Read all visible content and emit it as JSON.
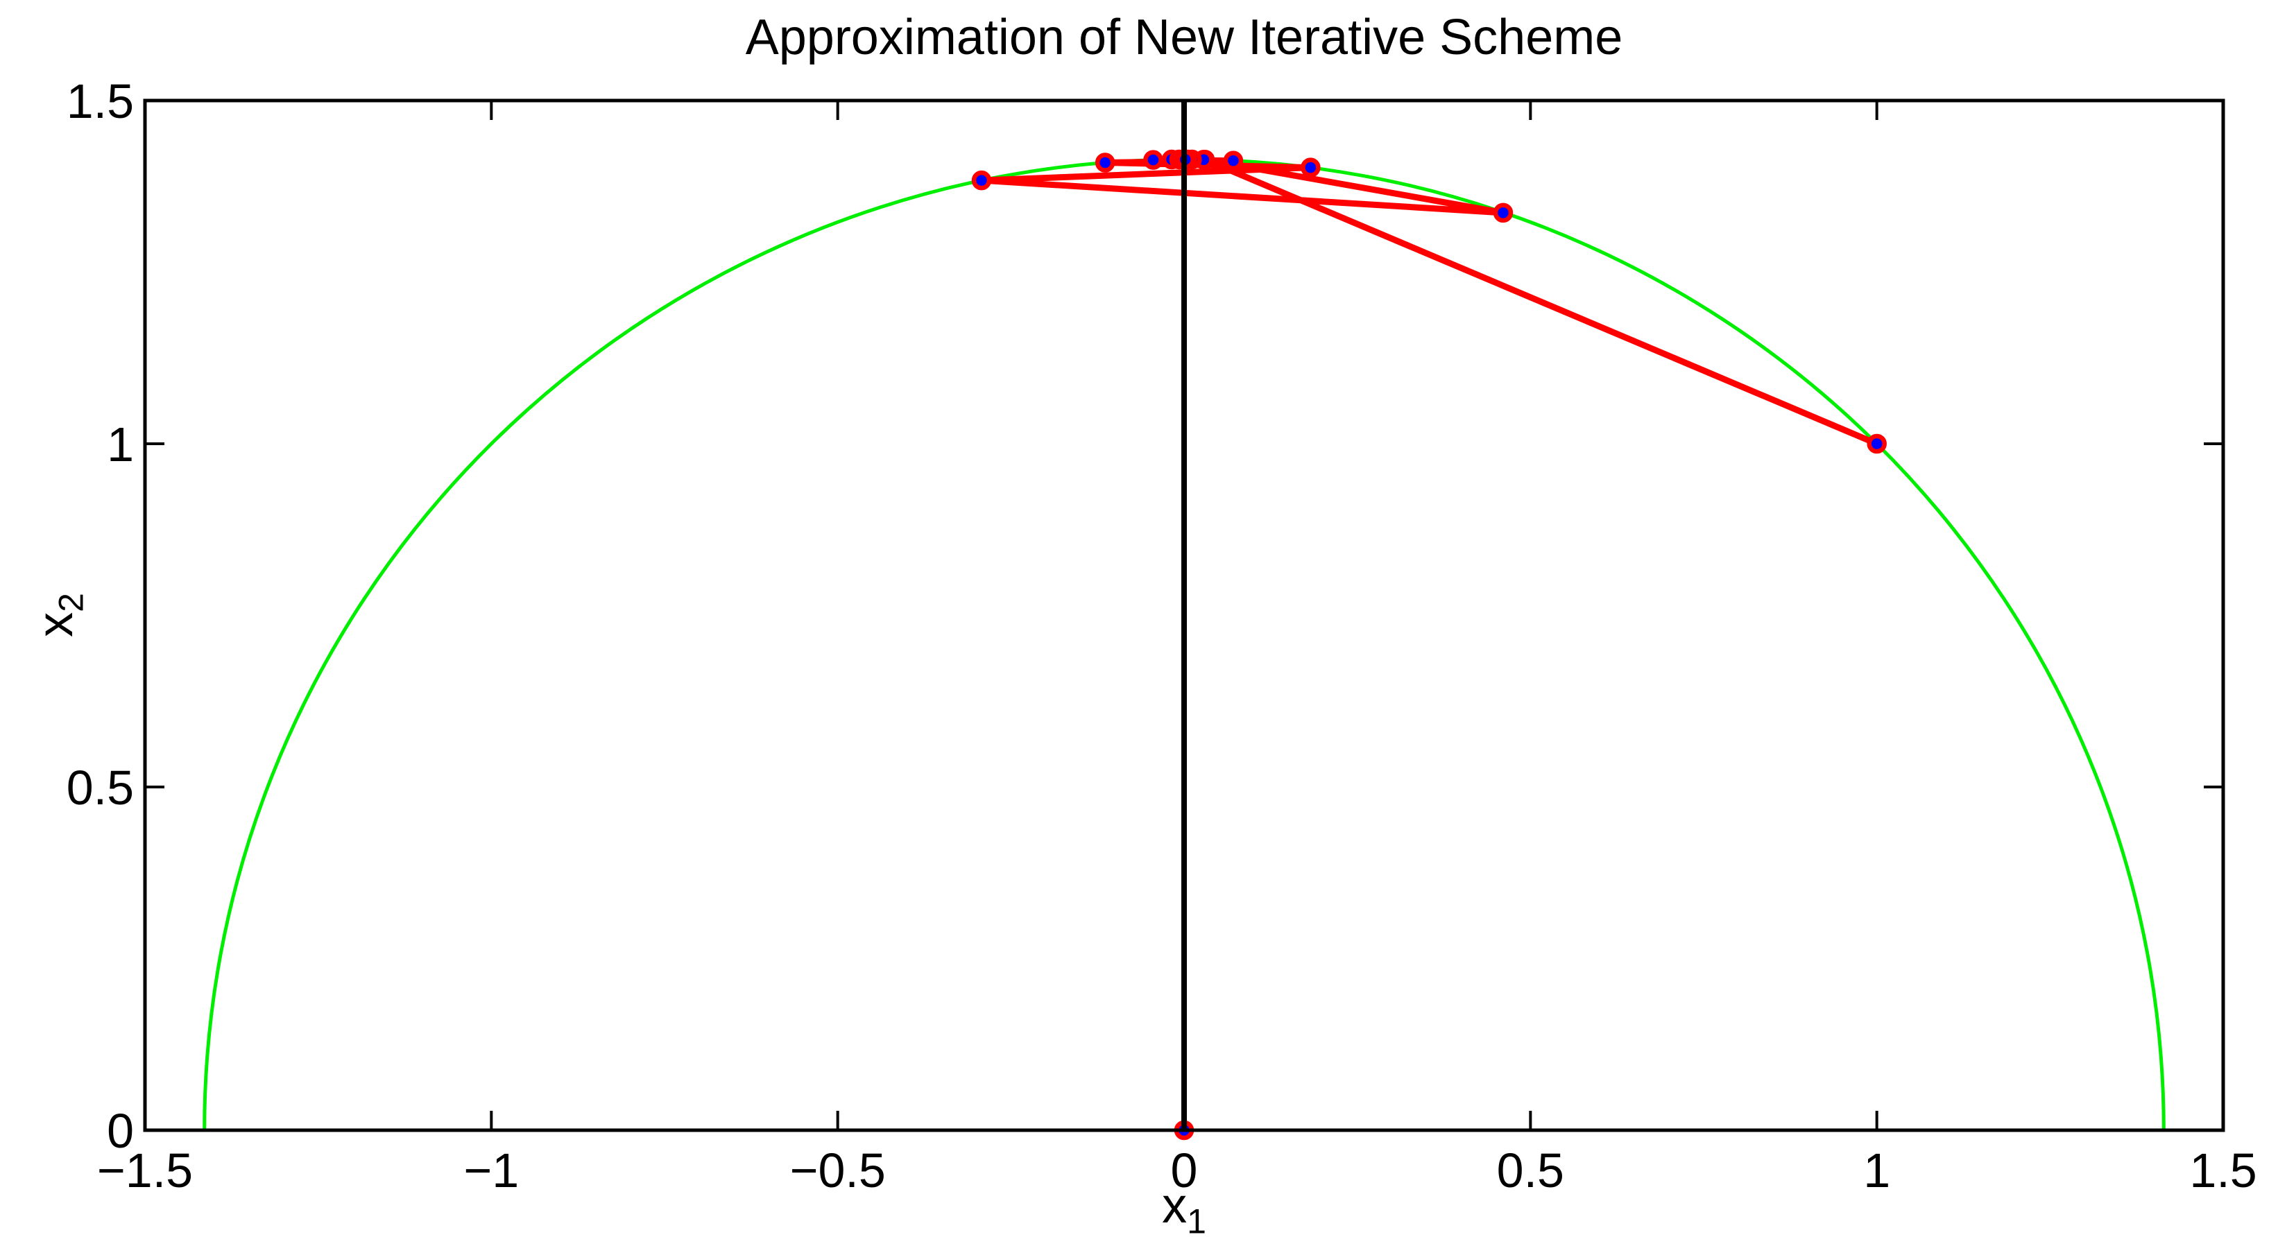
{
  "window": {
    "background": "#ffffff"
  },
  "chart_data": {
    "type": "line",
    "title": "Approximation of New Iterative Scheme",
    "xlabel_base": "x",
    "xlabel_sub": "1",
    "ylabel_base": "x",
    "ylabel_sub": "2",
    "xlim": [
      -1.5,
      1.5
    ],
    "ylim": [
      0,
      1.5
    ],
    "grid": false,
    "legend_position": "none",
    "x_tick_values": [
      -1.5,
      -1,
      -0.5,
      0,
      0.5,
      1,
      1.5
    ],
    "x_tick_labels": [
      "−1.5",
      "−1",
      "−0.5",
      "0",
      "0.5",
      "1",
      "1.5"
    ],
    "y_tick_values": [
      0,
      0.5,
      1,
      1.5
    ],
    "y_tick_labels": [
      "0",
      "0.5",
      "1",
      "1.5"
    ],
    "colors": {
      "circle_curve": "#00ee00",
      "iterate_line": "#ff0000",
      "marker_edge": "#ff0000",
      "marker_face": "#0000ff",
      "axes": "#000000"
    },
    "series": [
      {
        "name": "constraint-circle",
        "type": "curve",
        "description": "upper semicircle x1^2 + x2^2 = 2",
        "radius": 1.414214,
        "x_range": [
          -1.414214,
          1.414214
        ]
      },
      {
        "name": "zero-axis-line",
        "type": "segment",
        "points": [
          [
            0,
            0
          ],
          [
            0,
            1.5
          ]
        ]
      },
      {
        "name": "iterates-path",
        "type": "line-markers",
        "points": [
          [
            1.0,
            1.0
          ],
          [
            0.0301,
            1.4139
          ],
          [
            0.4606,
            1.3365
          ],
          [
            -0.2924,
            1.3837
          ],
          [
            0.1826,
            1.4024
          ],
          [
            -0.114,
            1.4096
          ],
          [
            0.071,
            1.4124
          ],
          [
            -0.0446,
            1.4135
          ],
          [
            0.0284,
            1.4139
          ],
          [
            -0.018,
            1.4141
          ],
          [
            0.0114,
            1.4142
          ],
          [
            -0.0072,
            1.4142
          ],
          [
            0.0046,
            1.4142
          ],
          [
            -0.0029,
            1.4142
          ],
          [
            0.0018,
            1.4142
          ]
        ]
      },
      {
        "name": "origin-point",
        "type": "markers",
        "points": [
          [
            0,
            0
          ]
        ]
      }
    ]
  }
}
